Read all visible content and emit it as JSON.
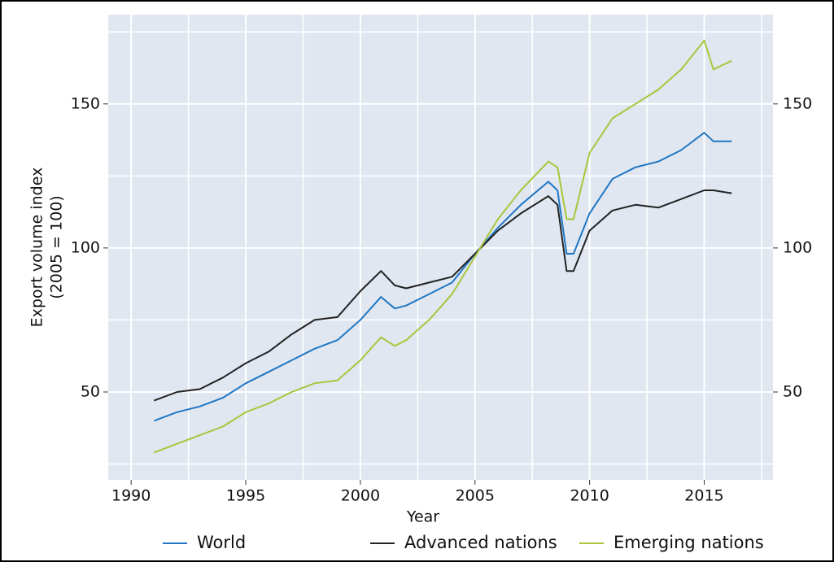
{
  "chart_data": {
    "type": "line",
    "xlabel": "Year",
    "ylabel": [
      "Export volume index",
      "(2005 = 100)"
    ],
    "x": [
      1991,
      1992,
      1993,
      1994,
      1995,
      1996,
      1997,
      1998,
      1999,
      2000,
      2000.9,
      2001.5,
      2002,
      2003,
      2004,
      2005,
      2006,
      2007,
      2008.2,
      2008.6,
      2009,
      2009.3,
      2010,
      2011,
      2012,
      2013,
      2014,
      2015,
      2015.4,
      2016.2
    ],
    "series": [
      {
        "name": "World",
        "color": "#1f77c4",
        "values": [
          40,
          43,
          45,
          48,
          53,
          57,
          61,
          65,
          68,
          75,
          83,
          79,
          80,
          84,
          88,
          98,
          107,
          115,
          123,
          120,
          98,
          98,
          112,
          124,
          128,
          130,
          134,
          140,
          137,
          137
        ]
      },
      {
        "name": "Advanced nations",
        "color": "#222222",
        "values": [
          47,
          50,
          51,
          55,
          60,
          64,
          70,
          75,
          76,
          85,
          92,
          87,
          86,
          88,
          90,
          98,
          106,
          112,
          118,
          115,
          92,
          92,
          106,
          113,
          115,
          114,
          117,
          120,
          120,
          119
        ]
      },
      {
        "name": "Emerging nations",
        "color": "#a8c63c",
        "values": [
          29,
          32,
          35,
          38,
          43,
          46,
          50,
          53,
          54,
          61,
          69,
          66,
          68,
          75,
          84,
          97,
          110,
          120,
          130,
          128,
          110,
          110,
          133,
          145,
          150,
          155,
          162,
          172,
          162,
          165
        ]
      }
    ],
    "xlim": [
      1989,
      2018
    ],
    "xticks": [
      1990,
      1995,
      2000,
      2005,
      2010,
      2015
    ],
    "xminor": [
      1992.5,
      1997.5,
      2002.5,
      2007.5,
      2012.5,
      2017.5
    ],
    "ylim": [
      19.5,
      181
    ],
    "yticks": [
      50,
      100,
      150
    ],
    "yminor": [
      25,
      75,
      125,
      175
    ],
    "y2lim": [
      19.5,
      181
    ],
    "y2ticks": [
      50,
      100,
      150
    ],
    "grid": true,
    "legend": "bottom"
  }
}
